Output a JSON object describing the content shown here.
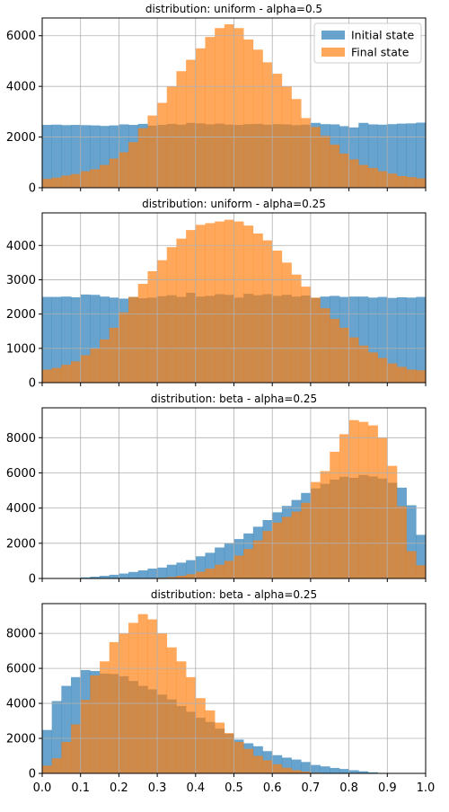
{
  "legend": {
    "items": [
      {
        "label": "Initial state",
        "color": "#1f77b4"
      },
      {
        "label": "Final state",
        "color": "#ff7f0e"
      }
    ]
  },
  "chart_data": [
    {
      "type": "bar",
      "title": "distribution: uniform - alpha=0.5",
      "bins": {
        "start": 0,
        "end": 1,
        "count": 40
      },
      "ylim": [
        0,
        6700
      ],
      "yticks": [
        0,
        2000,
        4000,
        6000
      ],
      "grid": true,
      "legend_position": "top-right",
      "series": [
        {
          "name": "Initial state",
          "color": "#1f77b4",
          "alpha": 0.68,
          "values": [
            2480,
            2490,
            2470,
            2480,
            2470,
            2460,
            2440,
            2460,
            2500,
            2480,
            2520,
            2450,
            2480,
            2520,
            2490,
            2560,
            2540,
            2500,
            2530,
            2490,
            2480,
            2510,
            2520,
            2490,
            2510,
            2500,
            2470,
            2490,
            2560,
            2510,
            2500,
            2430,
            2380,
            2560,
            2500,
            2490,
            2510,
            2530,
            2540,
            2570
          ]
        },
        {
          "name": "Final state",
          "color": "#ff7f0e",
          "alpha": 0.68,
          "values": [
            350,
            400,
            480,
            540,
            650,
            730,
            900,
            1150,
            1400,
            1800,
            2350,
            2850,
            3350,
            4000,
            4600,
            5050,
            5500,
            5950,
            6300,
            6450,
            6300,
            5850,
            5450,
            4950,
            4500,
            4000,
            3500,
            2750,
            2400,
            2050,
            1700,
            1350,
            1120,
            900,
            780,
            650,
            560,
            460,
            420,
            370
          ]
        }
      ]
    },
    {
      "type": "bar",
      "title": "distribution: uniform - alpha=0.25",
      "bins": {
        "start": 0,
        "end": 1,
        "count": 40
      },
      "ylim": [
        0,
        4950
      ],
      "yticks": [
        0,
        1000,
        2000,
        3000,
        4000
      ],
      "grid": true,
      "series": [
        {
          "name": "Initial state",
          "color": "#1f77b4",
          "alpha": 0.68,
          "values": [
            2500,
            2500,
            2510,
            2490,
            2570,
            2560,
            2510,
            2480,
            2450,
            2500,
            2460,
            2480,
            2520,
            2550,
            2500,
            2620,
            2510,
            2530,
            2580,
            2560,
            2480,
            2590,
            2550,
            2580,
            2530,
            2560,
            2510,
            2540,
            2470,
            2510,
            2530,
            2500,
            2510,
            2510,
            2480,
            2500,
            2470,
            2490,
            2480,
            2500
          ]
        },
        {
          "name": "Final state",
          "color": "#ff7f0e",
          "alpha": 0.68,
          "values": [
            380,
            430,
            520,
            620,
            800,
            1000,
            1260,
            1600,
            2050,
            2500,
            2880,
            3250,
            3570,
            3950,
            4200,
            4450,
            4600,
            4650,
            4700,
            4750,
            4700,
            4580,
            4350,
            4150,
            3850,
            3500,
            3150,
            2800,
            2480,
            2170,
            1860,
            1600,
            1320,
            1080,
            880,
            720,
            560,
            460,
            380,
            360
          ]
        }
      ]
    },
    {
      "type": "bar",
      "title": "distribution: beta - alpha=0.25",
      "bins": {
        "start": 0,
        "end": 1,
        "count": 40
      },
      "ylim": [
        0,
        9700
      ],
      "yticks": [
        0,
        2000,
        4000,
        6000,
        8000
      ],
      "grid": true,
      "series": [
        {
          "name": "Initial state",
          "color": "#1f77b4",
          "alpha": 0.68,
          "values": [
            0,
            0,
            0,
            20,
            60,
            100,
            150,
            210,
            280,
            370,
            460,
            560,
            620,
            780,
            900,
            1040,
            1260,
            1460,
            1760,
            2000,
            2240,
            2560,
            2940,
            3320,
            3760,
            4120,
            4460,
            4860,
            5120,
            5380,
            5620,
            5780,
            5720,
            5880,
            5800,
            5680,
            5440,
            5160,
            4160,
            2480
          ]
        },
        {
          "name": "Final state",
          "color": "#ff7f0e",
          "alpha": 0.68,
          "values": [
            0,
            0,
            0,
            0,
            0,
            0,
            0,
            0,
            0,
            0,
            0,
            20,
            40,
            80,
            150,
            240,
            380,
            560,
            780,
            1000,
            1300,
            1680,
            2160,
            2700,
            3180,
            3500,
            3800,
            4300,
            5480,
            6100,
            7200,
            8200,
            9000,
            8900,
            8700,
            8000,
            6400,
            4100,
            1550,
            750
          ]
        }
      ]
    },
    {
      "type": "bar",
      "title": "distribution: beta - alpha=0.25",
      "bins": {
        "start": 0,
        "end": 1,
        "count": 40
      },
      "ylim": [
        0,
        9700
      ],
      "yticks": [
        0,
        2000,
        4000,
        6000,
        8000
      ],
      "xticks": [
        "0.0",
        "0.1",
        "0.2",
        "0.3",
        "0.4",
        "0.5",
        "0.6",
        "0.7",
        "0.8",
        "0.9",
        "1.0"
      ],
      "grid": true,
      "series": [
        {
          "name": "Initial state",
          "color": "#1f77b4",
          "alpha": 0.68,
          "values": [
            2480,
            4130,
            5000,
            5500,
            5900,
            5850,
            5700,
            5680,
            5550,
            5280,
            5000,
            4800,
            4500,
            4230,
            3850,
            3520,
            3180,
            2940,
            2560,
            2270,
            1930,
            1720,
            1550,
            1270,
            1040,
            900,
            790,
            650,
            480,
            400,
            310,
            250,
            180,
            120,
            60,
            20,
            0,
            0,
            0,
            0
          ]
        },
        {
          "name": "Final state",
          "color": "#ff7f0e",
          "alpha": 0.68,
          "values": [
            440,
            860,
            1800,
            2800,
            4200,
            5600,
            6400,
            7500,
            8000,
            8600,
            9100,
            8800,
            8000,
            7200,
            6400,
            5500,
            4300,
            3600,
            2900,
            2300,
            1800,
            1400,
            1000,
            750,
            520,
            320,
            180,
            100,
            40,
            20,
            0,
            0,
            0,
            0,
            0,
            0,
            0,
            0,
            0,
            0
          ]
        }
      ]
    }
  ]
}
